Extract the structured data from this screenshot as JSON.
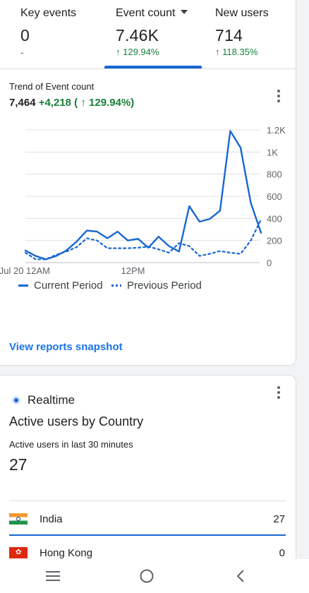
{
  "metrics": [
    {
      "title": "Key events",
      "value": "0",
      "change": "-"
    },
    {
      "title": "Event count",
      "value": "7.46K",
      "change": "↑ 129.94%"
    },
    {
      "title": "New users",
      "value": "714",
      "change": "↑ 118.35%"
    }
  ],
  "trend": {
    "title": "Trend of Event count",
    "total": "7,464",
    "delta": "+4,218 ( ↑ 129.94%)"
  },
  "chart_data": {
    "type": "line",
    "x": [
      "12AM",
      "1AM",
      "2AM",
      "3AM",
      "4AM",
      "5AM",
      "6AM",
      "7AM",
      "8AM",
      "9AM",
      "10AM",
      "11AM",
      "12PM",
      "1PM",
      "2PM",
      "3PM",
      "4PM",
      "5PM",
      "6PM",
      "7PM",
      "8PM",
      "9PM",
      "10PM",
      "11PM"
    ],
    "x_tick_labels": [
      "Jul 20 12AM",
      "12PM"
    ],
    "ylim": [
      0,
      1200
    ],
    "y_tick_labels": [
      "0",
      "200",
      "400",
      "600",
      "800",
      "1K",
      "1.2K"
    ],
    "y_ticks": [
      0,
      200,
      400,
      600,
      800,
      1000,
      1200
    ],
    "grid": true,
    "legend_position": "bottom",
    "series": [
      {
        "name": "Current Period",
        "color": "#1967d2",
        "style": "solid",
        "values": [
          110,
          60,
          30,
          60,
          110,
          190,
          290,
          280,
          220,
          280,
          200,
          215,
          135,
          235,
          150,
          100,
          510,
          370,
          395,
          470,
          1190,
          1040,
          540,
          270
        ]
      },
      {
        "name": "Previous Period",
        "color": "#1967d2",
        "style": "dotted",
        "values": [
          90,
          30,
          30,
          70,
          100,
          140,
          220,
          200,
          130,
          130,
          130,
          135,
          145,
          120,
          90,
          175,
          150,
          60,
          80,
          105,
          90,
          80,
          200,
          390
        ]
      }
    ]
  },
  "link": {
    "snapshot": "View reports snapshot"
  },
  "realtime": {
    "label": "Realtime",
    "title": "Active users by Country",
    "subtitle": "Active users in last 30 minutes",
    "value": "27",
    "rows": [
      {
        "country": "India",
        "count": "27"
      },
      {
        "country": "Hong Kong",
        "count": "0"
      }
    ]
  },
  "colors": {
    "accent": "#1a73e8",
    "positive": "#188038",
    "line": "#1967d2"
  },
  "icons": {
    "menu": "menu-icon",
    "home": "home-icon",
    "back": "back-icon",
    "more": "more-vert-icon"
  }
}
